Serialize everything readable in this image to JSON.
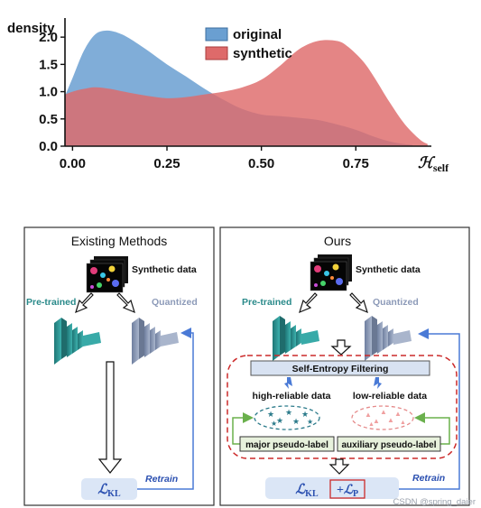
{
  "chart_data": {
    "type": "area",
    "ylabel": "density",
    "xlabel_main": "ℋ",
    "xlabel_sub": "self",
    "xlim": [
      -0.02,
      0.95
    ],
    "ylim": [
      0,
      2.35
    ],
    "xticks": [
      "0.00",
      "0.25",
      "0.50",
      "0.75"
    ],
    "xtick_values": [
      0.0,
      0.25,
      0.5,
      0.75
    ],
    "yticks": [
      "0.0",
      "0.5",
      "1.0",
      "1.5",
      "2.0"
    ],
    "ytick_values": [
      0.0,
      0.5,
      1.0,
      1.5,
      2.0
    ],
    "legend_position": "top-center",
    "series": [
      {
        "name": "original",
        "color": "#6a9fd1",
        "x": [
          -0.02,
          0.0,
          0.03,
          0.06,
          0.09,
          0.12,
          0.15,
          0.2,
          0.25,
          0.3,
          0.35,
          0.4,
          0.45,
          0.5,
          0.55,
          0.6,
          0.65,
          0.7,
          0.75,
          0.8,
          0.85,
          0.9
        ],
        "y": [
          0.92,
          1.25,
          1.75,
          2.05,
          2.12,
          2.08,
          1.98,
          1.75,
          1.5,
          1.28,
          1.05,
          0.85,
          0.68,
          0.58,
          0.55,
          0.52,
          0.48,
          0.4,
          0.3,
          0.17,
          0.07,
          0.02
        ]
      },
      {
        "name": "synthetic",
        "color": "#de6a6a",
        "x": [
          -0.02,
          0.0,
          0.03,
          0.06,
          0.1,
          0.15,
          0.2,
          0.25,
          0.3,
          0.35,
          0.4,
          0.45,
          0.5,
          0.55,
          0.6,
          0.65,
          0.7,
          0.73,
          0.77,
          0.8,
          0.84,
          0.88,
          0.92,
          0.94
        ],
        "y": [
          0.95,
          1.0,
          1.05,
          1.08,
          1.05,
          0.98,
          0.92,
          0.88,
          0.9,
          0.95,
          1.0,
          1.08,
          1.22,
          1.48,
          1.78,
          1.93,
          1.93,
          1.82,
          1.55,
          1.25,
          0.8,
          0.4,
          0.12,
          0.04
        ]
      }
    ]
  },
  "diagram": {
    "left_panel": {
      "title": "Existing Methods",
      "synthetic_label": "Synthetic data",
      "pretrained_label": "Pre-trained",
      "quantized_label": "Quantized",
      "loss_main": "ℒ",
      "loss_sub": "KL",
      "retrain_label": "Retrain"
    },
    "right_panel": {
      "title": "Ours",
      "synthetic_label": "Synthetic data",
      "pretrained_label": "Pre-trained",
      "quantized_label": "Quantized",
      "filter_label": "Self-Entropy Filtering",
      "high_label": "high-reliable data",
      "low_label": "low-reliable data",
      "major_label": "major pseudo-label",
      "aux_label": "auxiliary pseudo-label",
      "loss_main": "ℒ",
      "loss_sub": "KL",
      "loss_plus": "+ℒ",
      "loss_plus_sub": "P",
      "retrain_label": "Retrain"
    },
    "colors": {
      "teal": "#2a8a8a",
      "teal_light": "#38aaa8",
      "gray_blue": "#8c9ab8",
      "retrain_blue": "#4a7ad6",
      "green": "#6ab04c",
      "red_dash": "#cc2a2a",
      "loss_bg": "#dbe6f6"
    }
  },
  "watermark": "CSDN @spring_daier"
}
